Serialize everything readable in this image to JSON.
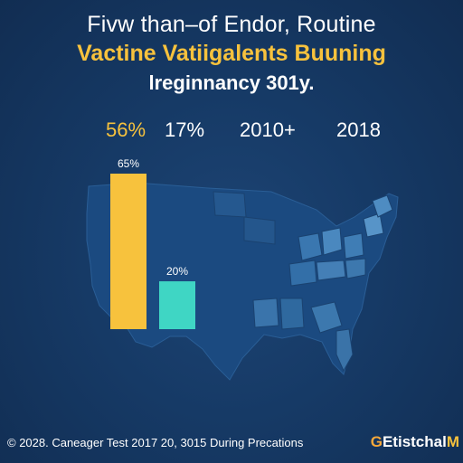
{
  "title": {
    "line1": "Fivw than–of Endor, Routine",
    "line2": "Vactine Vatiigalents Buuning",
    "line3": "lreginnancy 301y."
  },
  "legend_values": [
    "56%",
    "17%",
    "2010+",
    "2018"
  ],
  "chart_data": {
    "type": "bar",
    "categories": [
      "",
      ""
    ],
    "values": [
      65,
      20
    ],
    "data_labels": [
      "65%",
      "20%"
    ],
    "colors": [
      "#f7c23d",
      "#3fd6c4"
    ],
    "title": "Fivw than–of Endor, Routine Vactine Vatiigalents Buuning lreginnancy 301y.",
    "xlabel": "",
    "ylabel": ""
  },
  "background": {
    "map": "us-states-map"
  },
  "footer": {
    "note": "© 2028. Caneager Test 2017 20, 3015 During Precations",
    "brand_prefix": "G",
    "brand_main": "Etistchal",
    "brand_suffix": "M"
  }
}
